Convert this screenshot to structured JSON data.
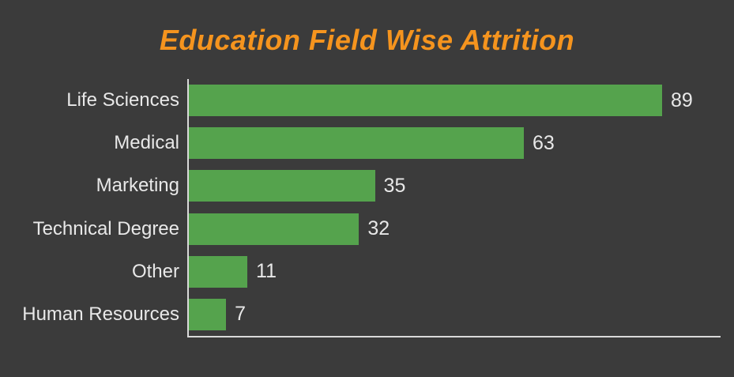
{
  "title": "Education Field Wise Attrition",
  "colors": {
    "background": "#3B3B3B",
    "bar": "#55A34D",
    "title": "#F5941E",
    "label": "#E8E8E8",
    "axis": "#D9D9D9"
  },
  "chart_data": {
    "type": "bar",
    "orientation": "horizontal",
    "title": "Education Field Wise Attrition",
    "categories": [
      "Life Sciences",
      "Medical",
      "Marketing",
      "Technical Degree",
      "Other",
      "Human Resources"
    ],
    "values": [
      89,
      63,
      35,
      32,
      11,
      7
    ],
    "xlabel": "",
    "ylabel": "",
    "xlim": [
      0,
      100
    ],
    "grid": false,
    "legend": false,
    "value_labels": true,
    "sort": "descending"
  }
}
